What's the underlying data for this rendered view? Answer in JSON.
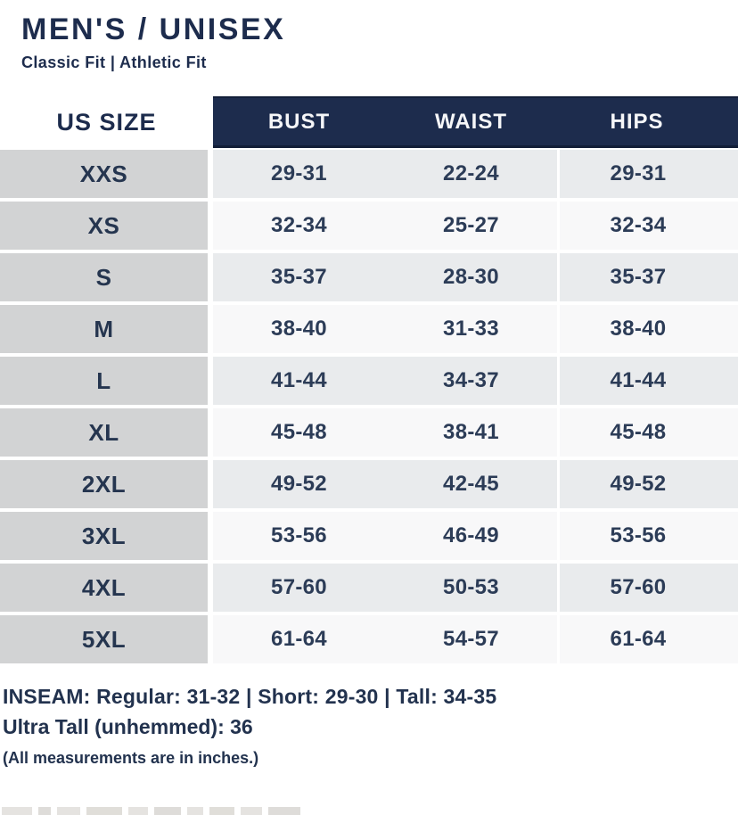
{
  "header": {
    "title": "MEN'S / UNISEX",
    "subtitle": "Classic Fit | Athletic Fit"
  },
  "table": {
    "size_column_header": "US SIZE",
    "columns": [
      "BUST",
      "WAIST",
      "HIPS"
    ],
    "rows": [
      {
        "size": "XXS",
        "bust": "29-31",
        "waist": "22-24",
        "hips": "29-31"
      },
      {
        "size": "XS",
        "bust": "32-34",
        "waist": "25-27",
        "hips": "32-34"
      },
      {
        "size": "S",
        "bust": "35-37",
        "waist": "28-30",
        "hips": "35-37"
      },
      {
        "size": "M",
        "bust": "38-40",
        "waist": "31-33",
        "hips": "38-40"
      },
      {
        "size": "L",
        "bust": "41-44",
        "waist": "34-37",
        "hips": "41-44"
      },
      {
        "size": "XL",
        "bust": "45-48",
        "waist": "38-41",
        "hips": "45-48"
      },
      {
        "size": "2XL",
        "bust": "49-52",
        "waist": "42-45",
        "hips": "49-52"
      },
      {
        "size": "3XL",
        "bust": "53-56",
        "waist": "46-49",
        "hips": "53-56"
      },
      {
        "size": "4XL",
        "bust": "57-60",
        "waist": "50-53",
        "hips": "57-60"
      },
      {
        "size": "5XL",
        "bust": "61-64",
        "waist": "54-57",
        "hips": "61-64"
      }
    ]
  },
  "footer": {
    "inseam_line": "INSEAM:  Regular: 31-32  |  Short: 29-30  |  Tall: 34-35",
    "ultra_tall_line": "Ultra Tall (unhemmed): 36",
    "note": "(All measurements are in inches.)"
  },
  "colors": {
    "navy": "#1d2c4d",
    "data_text_navy": "#2c3c57",
    "size_column_gray": "#d2d3d4",
    "row_gray": "#e9ebed",
    "row_white": "#f8f8f9"
  }
}
